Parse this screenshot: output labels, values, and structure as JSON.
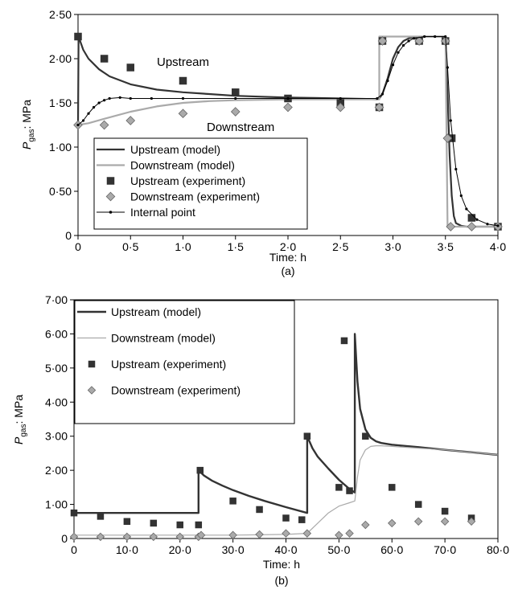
{
  "chart_data": [
    {
      "type": "line",
      "panel_label": "(a)",
      "xlabel": "Time: h",
      "ylabel_main": "P",
      "ylabel_sub": "gas",
      "ylabel_tail": ": MPa",
      "xlim": [
        0,
        4.0
      ],
      "ylim": [
        0,
        2.5
      ],
      "xticks": [
        0,
        0.5,
        1.0,
        1.5,
        2.0,
        2.5,
        3.0,
        3.5,
        4.0
      ],
      "xtick_labels": [
        "0",
        "0·5",
        "1·0",
        "1·5",
        "2·0",
        "2·5",
        "3·0",
        "3·5",
        "4·0"
      ],
      "yticks": [
        0,
        0.5,
        1.0,
        1.5,
        2.0,
        2.5
      ],
      "ytick_labels": [
        "0",
        "0·50",
        "1·00",
        "1·50",
        "2·00",
        "2·50"
      ],
      "annotations": [
        {
          "text": "Upstream",
          "x": 1.25,
          "y": 2.0
        },
        {
          "text": "Downstream",
          "x": 1.85,
          "y": 1.14
        }
      ],
      "legend": [
        "Upstream (model)",
        "Downstream (model)",
        "Upstream (experiment)",
        "Downstream (experiment)",
        "Internal point"
      ],
      "series": [
        {
          "name": "Upstream (model)",
          "style": "line",
          "color": "#333333",
          "x": [
            0,
            0.005,
            0.02,
            0.05,
            0.1,
            0.2,
            0.3,
            0.5,
            0.75,
            1.0,
            1.25,
            1.5,
            1.75,
            2.0,
            2.25,
            2.5,
            2.75,
            2.85,
            2.87,
            2.87,
            2.9,
            2.95,
            3.0,
            3.05,
            3.1,
            3.15,
            3.2,
            3.3,
            3.4,
            3.5,
            3.5,
            3.52,
            3.54,
            3.56,
            3.58,
            3.6,
            3.65,
            3.7,
            3.8,
            3.9,
            4.0
          ],
          "y": [
            1.25,
            2.28,
            2.2,
            2.1,
            2.0,
            1.88,
            1.8,
            1.71,
            1.65,
            1.62,
            1.6,
            1.58,
            1.57,
            1.56,
            1.555,
            1.55,
            1.545,
            1.54,
            1.55,
            1.55,
            1.6,
            1.78,
            2.0,
            2.13,
            2.2,
            2.23,
            2.24,
            2.25,
            2.25,
            2.25,
            2.25,
            1.6,
            0.9,
            0.45,
            0.22,
            0.14,
            0.11,
            0.1,
            0.1,
            0.1,
            0.1
          ]
        },
        {
          "name": "Downstream (model)",
          "style": "line",
          "color": "#aaaaaa",
          "x": [
            0,
            0.1,
            0.25,
            0.5,
            0.75,
            1.0,
            1.25,
            1.5,
            1.75,
            2.0,
            2.25,
            2.5,
            2.75,
            2.87,
            2.87,
            3.0,
            3.25,
            3.5,
            3.5,
            3.52,
            3.6,
            4.0
          ],
          "y": [
            1.25,
            1.27,
            1.32,
            1.4,
            1.46,
            1.5,
            1.52,
            1.53,
            1.535,
            1.54,
            1.54,
            1.54,
            1.54,
            1.54,
            2.25,
            2.25,
            2.25,
            2.25,
            2.25,
            0.1,
            0.1,
            0.1
          ]
        },
        {
          "name": "Upstream (experiment)",
          "style": "square",
          "x": [
            0,
            0.25,
            0.5,
            1.0,
            1.5,
            2.0,
            2.5,
            2.87,
            2.9,
            3.25,
            3.5,
            3.56,
            3.75,
            4.0
          ],
          "y": [
            2.25,
            2.0,
            1.9,
            1.75,
            1.62,
            1.55,
            1.5,
            1.45,
            2.2,
            2.2,
            2.2,
            1.1,
            0.2,
            0.1
          ]
        },
        {
          "name": "Downstream (experiment)",
          "style": "diamond",
          "x": [
            0,
            0.25,
            0.5,
            1.0,
            1.5,
            2.0,
            2.5,
            2.87,
            2.9,
            3.25,
            3.5,
            3.52,
            3.55,
            3.75,
            4.0
          ],
          "y": [
            1.25,
            1.25,
            1.3,
            1.38,
            1.4,
            1.45,
            1.45,
            1.45,
            2.2,
            2.2,
            2.2,
            1.1,
            0.1,
            0.1,
            0.1
          ]
        },
        {
          "name": "Internal point",
          "style": "line-dots",
          "color": "#000000",
          "x": [
            0,
            0.05,
            0.1,
            0.15,
            0.2,
            0.25,
            0.3,
            0.4,
            0.5,
            0.7,
            1.0,
            1.5,
            2.0,
            2.5,
            2.85,
            2.9,
            2.95,
            3.0,
            3.05,
            3.1,
            3.15,
            3.2,
            3.3,
            3.4,
            3.5,
            3.52,
            3.55,
            3.6,
            3.65,
            3.7,
            3.8,
            3.9,
            4.0
          ],
          "y": [
            1.25,
            1.3,
            1.38,
            1.45,
            1.5,
            1.53,
            1.55,
            1.56,
            1.55,
            1.55,
            1.55,
            1.55,
            1.55,
            1.55,
            1.55,
            1.6,
            1.75,
            1.93,
            2.07,
            2.15,
            2.2,
            2.23,
            2.25,
            2.25,
            2.25,
            1.9,
            1.3,
            0.75,
            0.45,
            0.3,
            0.18,
            0.13,
            0.11
          ]
        }
      ]
    },
    {
      "type": "line",
      "panel_label": "(b)",
      "xlabel": "Time: h",
      "ylabel_main": "P",
      "ylabel_sub": "gas",
      "ylabel_tail": ": MPa",
      "xlim": [
        0,
        80
      ],
      "ylim": [
        0,
        7.0
      ],
      "xticks": [
        0,
        10,
        20,
        30,
        40,
        50,
        60,
        70,
        80
      ],
      "xtick_labels": [
        "0",
        "10·0",
        "20·0",
        "30·0",
        "40·0",
        "50·0",
        "60·0",
        "70·0",
        "80·0"
      ],
      "yticks": [
        0,
        1,
        2,
        3,
        4,
        5,
        6,
        7
      ],
      "ytick_labels": [
        "0",
        "1·00",
        "2·00",
        "3·00",
        "4·00",
        "5·00",
        "6·00",
        "7·00"
      ],
      "legend": [
        "Upstream (model)",
        "Downstream (model)",
        "Upstream (experiment)",
        "Downstream (experiment)"
      ],
      "series": [
        {
          "name": "Upstream (model)",
          "style": "line",
          "color": "#333333",
          "x": [
            0,
            23.5,
            23.5,
            24.5,
            26,
            28,
            30,
            33,
            36,
            40,
            44,
            44,
            45,
            46,
            48,
            50,
            52,
            53,
            53,
            53.5,
            54,
            55,
            56,
            57,
            58,
            60,
            65,
            70,
            75,
            80
          ],
          "y": [
            0.75,
            0.75,
            2.0,
            1.85,
            1.7,
            1.55,
            1.42,
            1.25,
            1.1,
            0.92,
            0.75,
            3.0,
            2.65,
            2.4,
            2.05,
            1.72,
            1.45,
            1.35,
            6.0,
            4.6,
            3.8,
            3.2,
            2.95,
            2.85,
            2.8,
            2.75,
            2.68,
            2.6,
            2.53,
            2.45
          ]
        },
        {
          "name": "Downstream (model)",
          "style": "line",
          "color": "#aaaaaa",
          "x": [
            0,
            10,
            20,
            30,
            40,
            44,
            46,
            48,
            50,
            52,
            53,
            53.5,
            54,
            55,
            56,
            57,
            58,
            60,
            65,
            70,
            75,
            80
          ],
          "y": [
            0.1,
            0.1,
            0.1,
            0.1,
            0.12,
            0.15,
            0.45,
            0.75,
            0.95,
            1.05,
            1.1,
            1.8,
            2.3,
            2.6,
            2.7,
            2.72,
            2.72,
            2.7,
            2.65,
            2.6,
            2.53,
            2.45
          ]
        },
        {
          "name": "Upstream (experiment)",
          "style": "square",
          "x": [
            0,
            5,
            10,
            15,
            20,
            23.5,
            23.8,
            30,
            35,
            40,
            43,
            44,
            50,
            51,
            52,
            55,
            60,
            65,
            70,
            75
          ],
          "y": [
            0.75,
            0.65,
            0.5,
            0.45,
            0.4,
            0.4,
            2.0,
            1.1,
            0.85,
            0.6,
            0.55,
            3.0,
            1.5,
            5.8,
            1.4,
            3.0,
            1.5,
            1.0,
            0.8,
            0.6
          ]
        },
        {
          "name": "Downstream (experiment)",
          "style": "diamond",
          "x": [
            0,
            5,
            10,
            15,
            20,
            23.5,
            24,
            30,
            35,
            40,
            44,
            50,
            52,
            55,
            60,
            65,
            70,
            75
          ],
          "y": [
            0.05,
            0.05,
            0.05,
            0.05,
            0.05,
            0.05,
            0.1,
            0.1,
            0.12,
            0.15,
            0.15,
            0.1,
            0.15,
            0.4,
            0.45,
            0.5,
            0.5,
            0.5
          ]
        }
      ]
    }
  ]
}
